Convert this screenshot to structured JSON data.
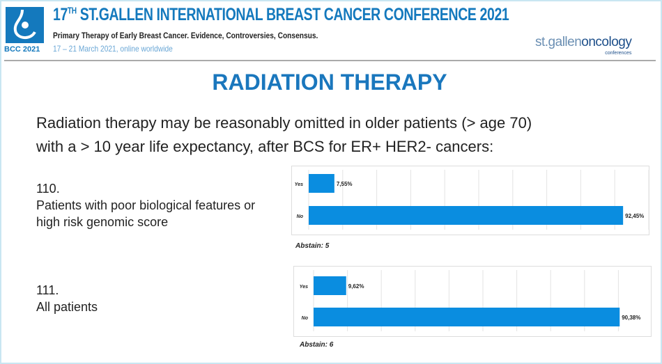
{
  "header": {
    "logo_text": "BCC 2021",
    "conference_title_prefix": "17",
    "conference_title_sup": "TH",
    "conference_title": " ST.GALLEN INTERNATIONAL BREAST CANCER CONFERENCE 2021",
    "subtitle": "Primary Therapy of Early Breast Cancer. Evidence, Controversies, Consensus.",
    "dates": "17 – 21 March 2021, online worldwide",
    "brand_left": "st.gallen",
    "brand_right": "oncology",
    "brand_small": "conferences"
  },
  "slide": {
    "title": "RADIATION THERAPY",
    "statement_line1": "Radiation therapy may be reasonably omitted in older patients (> age 70)",
    "statement_line2": "with a > 10 year life expectancy, after BCS for ER+ HER2- cancers:",
    "questions": [
      {
        "number": "110.",
        "text_line1": "Patients with poor biological features or",
        "text_line2": "high risk genomic score",
        "abstain": "Abstain: 5"
      },
      {
        "number": "111.",
        "text_line1": "All patients",
        "text_line2": "",
        "abstain": "Abstain: 6"
      }
    ]
  },
  "colors": {
    "accent": "#1479bd",
    "bar": "#0a8de0"
  },
  "chart_data": [
    {
      "type": "bar",
      "orientation": "horizontal",
      "categories": [
        "Yes",
        "No"
      ],
      "values": [
        7.55,
        92.45
      ],
      "labels": [
        "7,55%",
        "92,45%"
      ],
      "xlim": [
        0,
        100
      ],
      "grid": true
    },
    {
      "type": "bar",
      "orientation": "horizontal",
      "categories": [
        "Yes",
        "No"
      ],
      "values": [
        9.62,
        90.38
      ],
      "labels": [
        "9,62%",
        "90,38%"
      ],
      "xlim": [
        0,
        100
      ],
      "grid": true
    }
  ]
}
